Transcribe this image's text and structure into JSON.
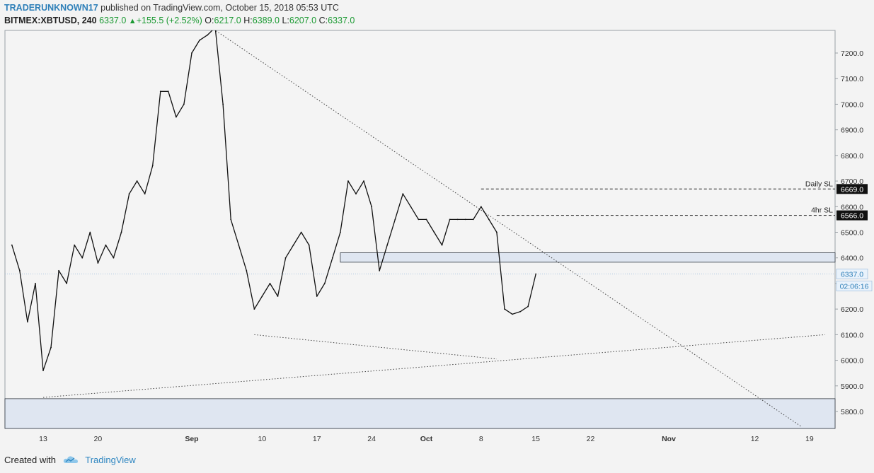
{
  "header": {
    "author": "TRADERUNKNOWN17",
    "published_text": "published on TradingView.com, October 15, 2018 05:53 UTC",
    "symbol": "BITMEX:XBTUSD, 240",
    "last": "6337.0",
    "change": "+155.5 (+2.52%)",
    "open_label": "O:",
    "open": "6217.0",
    "high_label": "H:",
    "high": "6389.0",
    "low_label": "L:",
    "low": "6207.0",
    "close_label": "C:",
    "close": "6337.0"
  },
  "footer": {
    "created_with": "Created with",
    "brand": "TradingView"
  },
  "colors": {
    "up": "#1c9a33",
    "brand": "#2e7fb8",
    "price": "#111111",
    "zone_fill": "#dfe6f1"
  },
  "chart_data": {
    "type": "line",
    "ylim": [
      5730,
      7300
    ],
    "y_ticks": [
      "7200.0",
      "7100.0",
      "7000.0",
      "6900.0",
      "6800.0",
      "6700.0",
      "6600.0",
      "6500.0",
      "6400.0",
      "6300.0",
      "6200.0",
      "6100.0",
      "6000.0",
      "5900.0",
      "5800.0"
    ],
    "x_ticks": [
      "13",
      "20",
      "Sep",
      "10",
      "17",
      "24",
      "Oct",
      "8",
      "15",
      "22",
      "Nov",
      "12",
      "19"
    ],
    "grid": false,
    "series": [
      {
        "values": [
          [
            "Aug 9",
            6450
          ],
          [
            "Aug 10",
            6350
          ],
          [
            "Aug 11",
            6150
          ],
          [
            "Aug 12",
            6300
          ],
          [
            "Aug 13",
            5960
          ],
          [
            "Aug 14",
            6050
          ],
          [
            "Aug 15",
            6350
          ],
          [
            "Aug 16",
            6300
          ],
          [
            "Aug 17",
            6450
          ],
          [
            "Aug 18",
            6400
          ],
          [
            "Aug 19",
            6500
          ],
          [
            "Aug 20",
            6380
          ],
          [
            "Aug 21",
            6450
          ],
          [
            "Aug 22",
            6400
          ],
          [
            "Aug 23",
            6500
          ],
          [
            "Aug 24",
            6650
          ],
          [
            "Aug 25",
            6700
          ],
          [
            "Aug 26",
            6650
          ],
          [
            "Aug 27",
            6760
          ],
          [
            "Aug 28",
            7050
          ],
          [
            "Aug 29",
            7050
          ],
          [
            "Aug 30",
            6950
          ],
          [
            "Aug 31",
            7000
          ],
          [
            "Sep 1",
            7200
          ],
          [
            "Sep 2",
            7250
          ],
          [
            "Sep 3",
            7270
          ],
          [
            "Sep 4",
            7300
          ],
          [
            "Sep 5",
            7000
          ],
          [
            "Sep 6",
            6550
          ],
          [
            "Sep 7",
            6450
          ],
          [
            "Sep 8",
            6350
          ],
          [
            "Sep 9",
            6200
          ],
          [
            "Sep 10",
            6250
          ],
          [
            "Sep 11",
            6300
          ],
          [
            "Sep 12",
            6250
          ],
          [
            "Sep 13",
            6400
          ],
          [
            "Sep 14",
            6450
          ],
          [
            "Sep 15",
            6500
          ],
          [
            "Sep 16",
            6450
          ],
          [
            "Sep 17",
            6250
          ],
          [
            "Sep 18",
            6300
          ],
          [
            "Sep 19",
            6400
          ],
          [
            "Sep 20",
            6500
          ],
          [
            "Sep 21",
            6700
          ],
          [
            "Sep 22",
            6650
          ],
          [
            "Sep 23",
            6700
          ],
          [
            "Sep 24",
            6600
          ],
          [
            "Sep 25",
            6350
          ],
          [
            "Sep 26",
            6450
          ],
          [
            "Sep 27",
            6550
          ],
          [
            "Sep 28",
            6650
          ],
          [
            "Sep 29",
            6600
          ],
          [
            "Sep 30",
            6550
          ],
          [
            "Oct 1",
            6550
          ],
          [
            "Oct 2",
            6500
          ],
          [
            "Oct 3",
            6450
          ],
          [
            "Oct 4",
            6550
          ],
          [
            "Oct 5",
            6550
          ],
          [
            "Oct 6",
            6550
          ],
          [
            "Oct 7",
            6550
          ],
          [
            "Oct 8",
            6600
          ],
          [
            "Oct 9",
            6550
          ],
          [
            "Oct 10",
            6500
          ],
          [
            "Oct 11",
            6200
          ],
          [
            "Oct 12",
            6180
          ],
          [
            "Oct 13",
            6190
          ],
          [
            "Oct 14",
            6210
          ],
          [
            "Oct 15",
            6337
          ]
        ]
      }
    ],
    "last_price": 6337.0,
    "bar_countdown": "02:06:16",
    "levels": [
      {
        "label": "Daily SL",
        "value": 6669.0,
        "value_label": "6669.0"
      },
      {
        "label": "4hr SL",
        "value": 6566.0,
        "value_label": "6566.0"
      }
    ],
    "zones": [
      {
        "from": 6383,
        "to": 6420
      },
      {
        "from": 5730,
        "to": 5850
      }
    ],
    "trendlines": [
      {
        "style": "dotted",
        "from": [
          "Aug 13",
          5855
        ],
        "to": [
          "Nov 21",
          6100
        ]
      },
      {
        "style": "dotted",
        "from": [
          "Sep 9",
          6100
        ],
        "to": [
          "Oct 10",
          6005
        ]
      },
      {
        "style": "dotted",
        "from": [
          "Sep 2",
          7330
        ],
        "to": [
          "Nov 18",
          5740
        ]
      }
    ]
  }
}
